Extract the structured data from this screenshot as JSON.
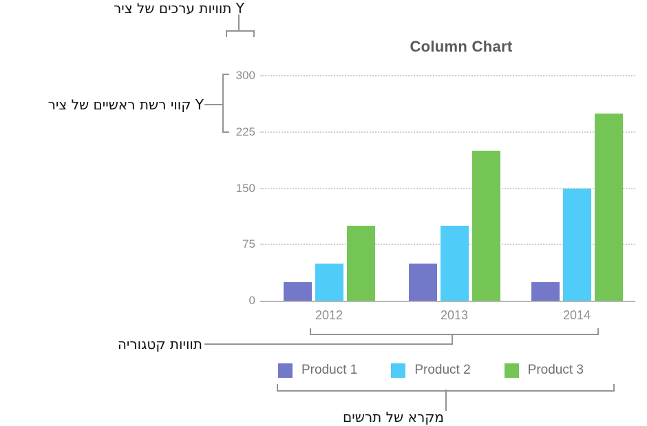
{
  "annotations": {
    "value_labels": "תוויות ערכים של ציר Y",
    "gridlines": "קווי רשת ראשיים של ציר Y",
    "category_labels": "תוויות קטגוריה",
    "legend": "מקרא של תרשים"
  },
  "chart_data": {
    "type": "bar",
    "title": "Column Chart",
    "categories": [
      "2012",
      "2013",
      "2014"
    ],
    "series": [
      {
        "name": "Product 1",
        "color": "#7378c8",
        "values": [
          25,
          50,
          25
        ]
      },
      {
        "name": "Product 2",
        "color": "#4fccf8",
        "values": [
          50,
          100,
          150
        ]
      },
      {
        "name": "Product 3",
        "color": "#74c556",
        "values": [
          100,
          200,
          250
        ]
      }
    ],
    "y_ticks": [
      0,
      75,
      150,
      225,
      300
    ],
    "ylim": [
      0,
      300
    ],
    "xlabel": "",
    "ylabel": "",
    "grid": "horizontal-dotted",
    "legend_position": "bottom"
  },
  "colors": {
    "title_text": "#58595b",
    "axis_labels": "#8e8f91",
    "legend_text": "#6e6f71",
    "gridline": "#cdcdcd",
    "axis_line": "#b5b5b5",
    "callout_line": "#949494",
    "callout_text": "#111111",
    "background": "#ffffff"
  }
}
